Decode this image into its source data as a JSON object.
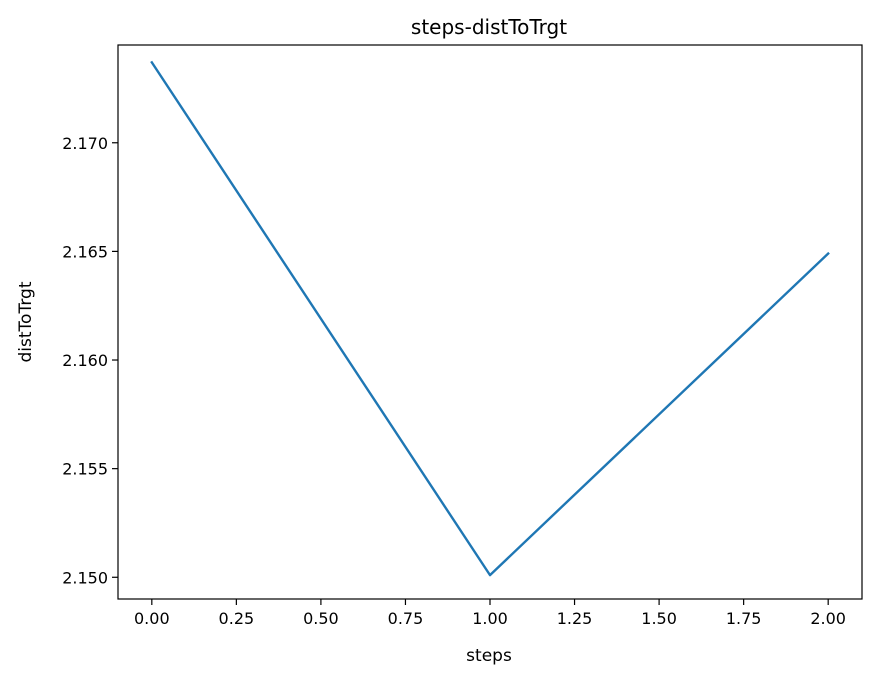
{
  "chart_data": {
    "type": "line",
    "title": "steps-distToTrgt",
    "xlabel": "steps",
    "ylabel": "distToTrgt",
    "xlim": [
      -0.1,
      2.1
    ],
    "ylim": [
      2.149,
      2.1745
    ],
    "xticks": [
      0.0,
      0.25,
      0.5,
      0.75,
      1.0,
      1.25,
      1.5,
      1.75,
      2.0
    ],
    "xtick_labels": [
      "0.00",
      "0.25",
      "0.50",
      "0.75",
      "1.00",
      "1.25",
      "1.50",
      "1.75",
      "2.00"
    ],
    "yticks": [
      2.15,
      2.155,
      2.16,
      2.165,
      2.17
    ],
    "ytick_labels": [
      "2.150",
      "2.155",
      "2.160",
      "2.165",
      "2.170"
    ],
    "grid": false,
    "series": [
      {
        "x": [
          0,
          1,
          2
        ],
        "y": [
          2.1737,
          2.1501,
          2.1649
        ],
        "color": "#1f77b4"
      }
    ]
  }
}
